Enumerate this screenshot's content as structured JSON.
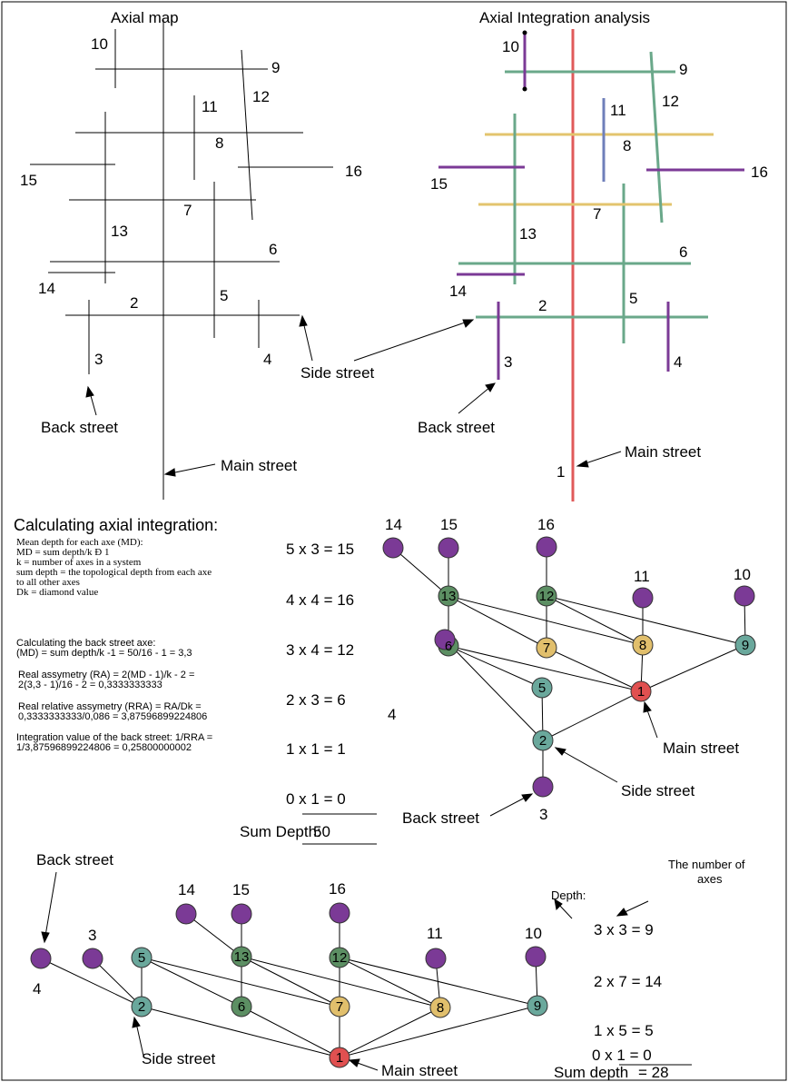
{
  "titles": {
    "axial_map": "Axial map",
    "integration": "Axial Integration analysis",
    "calc": "Calculating axial integration:"
  },
  "streets": {
    "main": "Main street",
    "side": "Side street",
    "back": "Back street"
  },
  "map_labels": [
    "1",
    "2",
    "3",
    "4",
    "5",
    "6",
    "7",
    "8",
    "9",
    "10",
    "11",
    "12",
    "13",
    "14",
    "15",
    "16"
  ],
  "calc_text": {
    "definitions": [
      "Mean depth for each axe (MD):",
      "MD = sum depth/k Ð 1",
      "k = number of axes in a system",
      "sum depth = the topological depth from each axe",
      "to all other axes",
      "Dk = diamond value"
    ],
    "back_street_calc": [
      "Calculating the back street axe:",
      "(MD) = sum depth/k -1 = 50/16 - 1 = 3,3"
    ],
    "ra": [
      "Real assymetry (RA) = 2(MD - 1)/k - 2 =",
      "2(3,3 - 1)/16 - 2 = 0,3333333333"
    ],
    "rra": [
      "Real relative assymetry (RRA) = RA/Dk =",
      "0,3333333333/0,086 = 3,87596899224806"
    ],
    "integration": [
      "Integration value of the back street: 1/RRA =",
      "1/3,87596899224806 = 0,25800000002"
    ]
  },
  "equations_top": [
    "5 x 3 = 15",
    "4 x 4 = 16",
    "3 x 4 = 12",
    "2 x 3 = 6",
    "1 x 1 = 1",
    "0 x 1 = 0"
  ],
  "sum_top": {
    "label": "Sum Depth:",
    "value": "50"
  },
  "equations_bottom": [
    "3 x 3 = 9",
    "2 x 7 = 14",
    "1 x 5 = 5",
    "0 x 1 = 0"
  ],
  "sum_bottom": {
    "label": "Sum depth",
    "value": "= 28"
  },
  "annotations": {
    "depth": "Depth:",
    "num_axes_1": "The number of",
    "num_axes_2": "axes"
  },
  "colors": {
    "purple": "#7b3a96",
    "green": "#5c8f63",
    "teal": "#6aa89c",
    "yellow": "#e1bf6c",
    "red": "#e05050",
    "blue": "#6f7fba",
    "line_red": "#e05a5a",
    "line_green": "#6aa88a",
    "line_yellow": "#e3c46e"
  }
}
